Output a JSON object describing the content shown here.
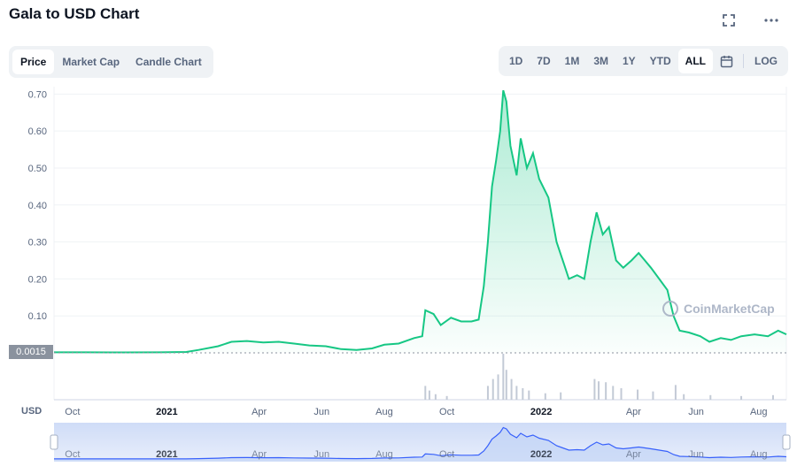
{
  "header": {
    "title": "Gala to USD Chart"
  },
  "tabs": [
    {
      "label": "Price",
      "active": true
    },
    {
      "label": "Market Cap",
      "active": false
    },
    {
      "label": "Candle Chart",
      "active": false
    }
  ],
  "ranges": [
    {
      "label": "1D"
    },
    {
      "label": "7D"
    },
    {
      "label": "1M"
    },
    {
      "label": "3M"
    },
    {
      "label": "1Y"
    },
    {
      "label": "YTD"
    },
    {
      "label": "ALL",
      "active": true
    }
  ],
  "log_label": "LOG",
  "currency_label": "USD",
  "current_price_label": "0.0015",
  "watermark": "CoinMarketCap",
  "colors": {
    "line": "#16c784",
    "accent": "#3861fb",
    "volume": "#c3cad6"
  },
  "chart_data": {
    "type": "area",
    "title": "Gala to USD Chart",
    "ylabel": "USD",
    "ylim": [
      0,
      0.72
    ],
    "y_ticks": [
      0.1,
      0.2,
      0.3,
      0.4,
      0.5,
      0.6,
      0.7
    ],
    "y_tick_labels": [
      "0.10",
      "0.20",
      "0.30",
      "0.40",
      "0.50",
      "0.60",
      "0.70"
    ],
    "x_tick_labels": [
      {
        "t": "2020-10-01",
        "label": "Oct",
        "bold": false
      },
      {
        "t": "2021-01-01",
        "label": "2021",
        "bold": true
      },
      {
        "t": "2021-04-01",
        "label": "Apr",
        "bold": false
      },
      {
        "t": "2021-06-01",
        "label": "Jun",
        "bold": false
      },
      {
        "t": "2021-08-01",
        "label": "Aug",
        "bold": false
      },
      {
        "t": "2021-10-01",
        "label": "Oct",
        "bold": false
      },
      {
        "t": "2022-01-01",
        "label": "2022",
        "bold": true
      },
      {
        "t": "2022-04-01",
        "label": "Apr",
        "bold": false
      },
      {
        "t": "2022-06-01",
        "label": "Jun",
        "bold": false
      },
      {
        "t": "2022-08-01",
        "label": "Aug",
        "bold": false
      }
    ],
    "x_range": [
      "2020-09-13",
      "2022-08-28"
    ],
    "grid": true,
    "series": [
      {
        "points": [
          [
            "2020-09-13",
            0.0015
          ],
          [
            "2020-10-15",
            0.0015
          ],
          [
            "2020-11-20",
            0.0012
          ],
          [
            "2020-12-25",
            0.0015
          ],
          [
            "2021-01-20",
            0.0025
          ],
          [
            "2021-02-01",
            0.008
          ],
          [
            "2021-02-20",
            0.018
          ],
          [
            "2021-03-05",
            0.03
          ],
          [
            "2021-03-20",
            0.032
          ],
          [
            "2021-04-05",
            0.028
          ],
          [
            "2021-04-20",
            0.03
          ],
          [
            "2021-05-05",
            0.025
          ],
          [
            "2021-05-20",
            0.02
          ],
          [
            "2021-06-05",
            0.018
          ],
          [
            "2021-06-20",
            0.01
          ],
          [
            "2021-07-05",
            0.008
          ],
          [
            "2021-07-20",
            0.012
          ],
          [
            "2021-08-01",
            0.022
          ],
          [
            "2021-08-15",
            0.025
          ],
          [
            "2021-08-30",
            0.04
          ],
          [
            "2021-09-07",
            0.045
          ],
          [
            "2021-09-10",
            0.115
          ],
          [
            "2021-09-18",
            0.105
          ],
          [
            "2021-09-25",
            0.075
          ],
          [
            "2021-10-05",
            0.095
          ],
          [
            "2021-10-15",
            0.085
          ],
          [
            "2021-10-25",
            0.085
          ],
          [
            "2021-11-01",
            0.09
          ],
          [
            "2021-11-06",
            0.18
          ],
          [
            "2021-11-10",
            0.3
          ],
          [
            "2021-11-14",
            0.45
          ],
          [
            "2021-11-18",
            0.52
          ],
          [
            "2021-11-22",
            0.6
          ],
          [
            "2021-11-25",
            0.71
          ],
          [
            "2021-11-28",
            0.68
          ],
          [
            "2021-12-02",
            0.56
          ],
          [
            "2021-12-08",
            0.48
          ],
          [
            "2021-12-12",
            0.58
          ],
          [
            "2021-12-18",
            0.5
          ],
          [
            "2021-12-24",
            0.54
          ],
          [
            "2021-12-30",
            0.47
          ],
          [
            "2022-01-08",
            0.42
          ],
          [
            "2022-01-16",
            0.3
          ],
          [
            "2022-01-22",
            0.25
          ],
          [
            "2022-01-28",
            0.2
          ],
          [
            "2022-02-05",
            0.21
          ],
          [
            "2022-02-12",
            0.2
          ],
          [
            "2022-02-18",
            0.3
          ],
          [
            "2022-02-24",
            0.38
          ],
          [
            "2022-03-02",
            0.32
          ],
          [
            "2022-03-08",
            0.34
          ],
          [
            "2022-03-15",
            0.25
          ],
          [
            "2022-03-22",
            0.23
          ],
          [
            "2022-03-30",
            0.25
          ],
          [
            "2022-04-06",
            0.27
          ],
          [
            "2022-04-12",
            0.25
          ],
          [
            "2022-04-18",
            0.23
          ],
          [
            "2022-04-26",
            0.2
          ],
          [
            "2022-05-04",
            0.17
          ],
          [
            "2022-05-10",
            0.1
          ],
          [
            "2022-05-16",
            0.06
          ],
          [
            "2022-05-25",
            0.055
          ],
          [
            "2022-06-05",
            0.045
          ],
          [
            "2022-06-14",
            0.03
          ],
          [
            "2022-06-25",
            0.04
          ],
          [
            "2022-07-05",
            0.035
          ],
          [
            "2022-07-15",
            0.045
          ],
          [
            "2022-07-28",
            0.05
          ],
          [
            "2022-08-10",
            0.045
          ],
          [
            "2022-08-20",
            0.06
          ],
          [
            "2022-08-28",
            0.05
          ]
        ]
      }
    ],
    "volume": [
      [
        "2021-09-10",
        0.3
      ],
      [
        "2021-09-14",
        0.2
      ],
      [
        "2021-09-20",
        0.12
      ],
      [
        "2021-10-01",
        0.08
      ],
      [
        "2021-11-10",
        0.3
      ],
      [
        "2021-11-15",
        0.45
      ],
      [
        "2021-11-20",
        0.55
      ],
      [
        "2021-11-25",
        1.0
      ],
      [
        "2021-11-28",
        0.65
      ],
      [
        "2021-12-03",
        0.45
      ],
      [
        "2021-12-08",
        0.3
      ],
      [
        "2021-12-14",
        0.25
      ],
      [
        "2021-12-20",
        0.2
      ],
      [
        "2022-01-05",
        0.14
      ],
      [
        "2022-01-20",
        0.16
      ],
      [
        "2022-02-22",
        0.45
      ],
      [
        "2022-02-26",
        0.4
      ],
      [
        "2022-03-05",
        0.38
      ],
      [
        "2022-03-12",
        0.3
      ],
      [
        "2022-03-20",
        0.25
      ],
      [
        "2022-04-05",
        0.22
      ],
      [
        "2022-04-20",
        0.18
      ],
      [
        "2022-05-12",
        0.32
      ],
      [
        "2022-05-20",
        0.12
      ],
      [
        "2022-06-15",
        0.1
      ],
      [
        "2022-07-15",
        0.08
      ],
      [
        "2022-08-15",
        0.1
      ]
    ]
  },
  "navigator": {
    "tick_labels": [
      "Oct",
      "2021",
      "Apr",
      "Jun",
      "Aug",
      "Oct",
      "2022",
      "Apr",
      "Jun",
      "Aug"
    ]
  }
}
